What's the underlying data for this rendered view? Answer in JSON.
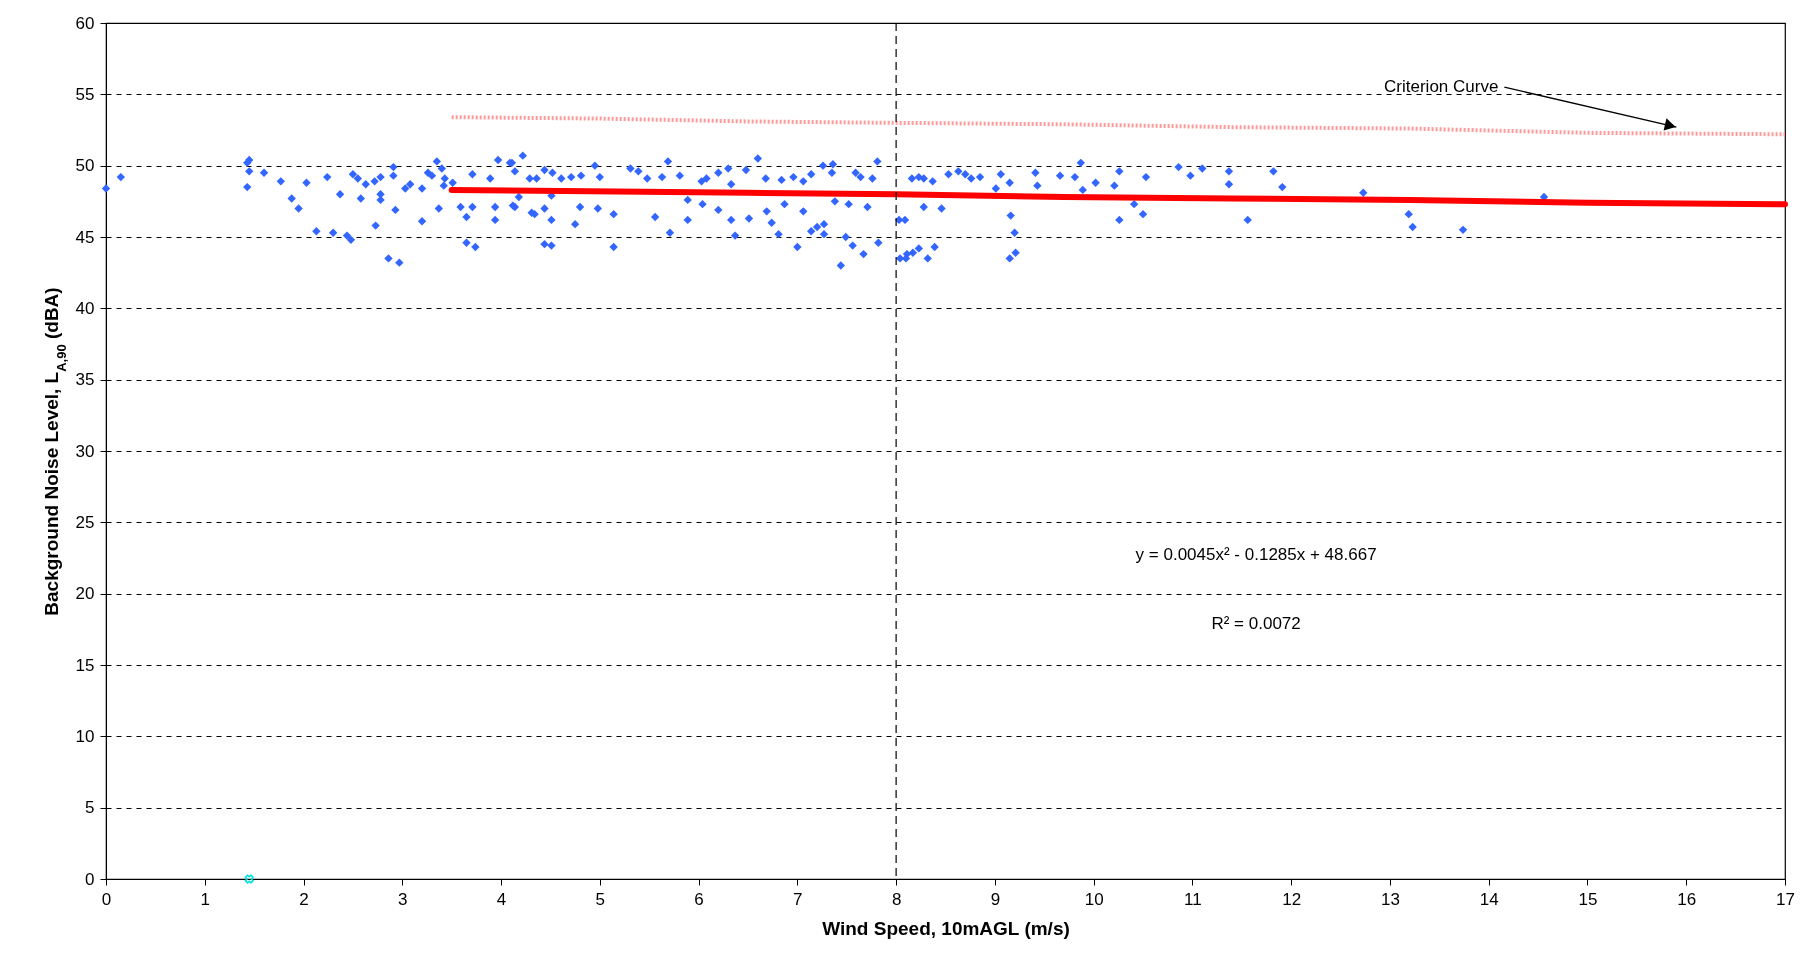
{
  "chart_data": {
    "type": "scatter",
    "xlabel": "Wind Speed, 10mAGL (m/s)",
    "ylabel": "Background Noise Level, L$_{A,90}$ (dBA)",
    "xlim": [
      0,
      17
    ],
    "xticks": [
      0,
      1,
      2,
      3,
      4,
      5,
      6,
      7,
      8,
      9,
      10,
      11,
      12,
      13,
      14,
      15,
      16,
      17
    ],
    "ylim": [
      0,
      60
    ],
    "yticks": [
      0,
      5,
      10,
      15,
      20,
      25,
      30,
      35,
      40,
      45,
      50,
      55,
      60
    ],
    "grid": "y",
    "marker": "diamond",
    "series": [
      {
        "color": "#3366ff",
        "x": [
          0,
          0.15,
          1.43,
          1.45,
          1.45,
          1.43,
          1.6,
          1.77,
          1.88,
          1.95,
          2.03,
          2.13,
          2.24,
          2.3,
          2.37,
          2.44,
          2.48,
          2.5,
          2.55,
          2.58,
          2.63,
          2.73,
          2.72,
          2.78,
          2.78,
          2.78,
          2.86,
          2.91,
          2.91,
          2.93,
          2.97,
          3.03,
          3.08,
          3.2,
          3.2,
          3.26,
          3.3,
          3.35,
          3.37,
          3.4,
          3.43,
          3.42,
          3.51,
          3.59,
          3.65,
          3.65,
          3.71,
          3.71,
          3.74,
          3.89,
          3.94,
          3.94,
          3.97,
          4.09,
          4.12,
          4.11,
          4.14,
          4.22,
          4.18,
          4.14,
          4.29,
          4.36,
          4.31,
          4.34,
          4.44,
          4.44,
          4.51,
          4.44,
          4.51,
          4.52,
          4.51,
          4.61,
          4.71,
          4.81,
          4.75,
          4.8,
          4.95,
          5.0,
          4.98,
          5.14,
          5.14,
          5.31,
          5.39,
          5.48,
          5.63,
          5.56,
          5.69,
          5.71,
          5.81,
          5.89,
          5.89,
          6.03,
          6.08,
          6.04,
          6.2,
          6.3,
          6.2,
          6.33,
          6.33,
          6.37,
          6.48,
          6.51,
          6.6,
          6.68,
          6.69,
          6.74,
          6.81,
          6.84,
          6.87,
          6.96,
          7.06,
          7.14,
          7.0,
          7.06,
          7.14,
          7.2,
          7.27,
          7.26,
          7.36,
          7.35,
          7.27,
          7.38,
          7.44,
          7.49,
          7.56,
          7.52,
          7.59,
          7.64,
          7.67,
          7.71,
          7.76,
          7.81,
          7.82,
          8.03,
          8.04,
          8.11,
          8.16,
          8.09,
          8.1,
          8.17,
          8.23,
          8.23,
          8.28,
          8.28,
          8.32,
          8.37,
          8.39,
          8.46,
          8.53,
          8.63,
          8.7,
          8.76,
          8.85,
          9.01,
          9.06,
          9.15,
          9.16,
          9.2,
          9.15,
          9.21,
          9.41,
          9.43,
          9.66,
          9.81,
          9.87,
          9.89,
          10.02,
          10.21,
          10.26,
          10.26,
          10.41,
          10.5,
          10.53,
          10.86,
          10.98,
          11.1,
          11.37,
          11.37,
          11.56,
          11.82,
          11.91,
          12.73,
          13.19,
          13.23,
          13.74,
          14.56
        ],
        "values": [
          48.4,
          49.2,
          50.2,
          50.4,
          49.6,
          48.5,
          49.5,
          48.9,
          47.7,
          47.0,
          48.8,
          45.4,
          49.2,
          45.3,
          48.0,
          45.1,
          44.8,
          49.4,
          49.1,
          47.7,
          48.7,
          45.8,
          48.9,
          49.2,
          48.0,
          47.6,
          43.5,
          49.9,
          49.3,
          46.9,
          43.2,
          48.4,
          48.7,
          46.1,
          48.4,
          49.5,
          49.3,
          50.3,
          47.0,
          49.8,
          49.1,
          48.6,
          48.8,
          47.1,
          46.4,
          44.6,
          49.4,
          47.1,
          44.3,
          49.1,
          47.1,
          46.2,
          50.4,
          50.2,
          47.2,
          50.2,
          49.6,
          50.7,
          47.8,
          47.1,
          49.1,
          49.1,
          46.7,
          46.6,
          49.7,
          47.0,
          46.2,
          44.5,
          44.4,
          49.5,
          47.9,
          49.1,
          49.2,
          49.3,
          45.9,
          47.1,
          50.0,
          49.2,
          47.0,
          46.6,
          44.3,
          49.8,
          49.6,
          49.1,
          49.2,
          46.4,
          50.3,
          45.3,
          49.3,
          47.6,
          46.2,
          48.9,
          49.1,
          47.3,
          49.5,
          49.8,
          46.9,
          48.7,
          46.2,
          45.1,
          49.7,
          46.3,
          50.5,
          49.1,
          46.8,
          46.0,
          45.2,
          49.0,
          47.3,
          49.2,
          48.9,
          49.4,
          44.3,
          46.8,
          45.4,
          45.7,
          45.9,
          50.0,
          50.1,
          49.5,
          45.2,
          47.5,
          43.0,
          45.0,
          44.4,
          47.3,
          49.5,
          49.2,
          43.8,
          47.1,
          49.1,
          50.3,
          44.6,
          46.2,
          43.5,
          43.8,
          49.1,
          46.2,
          43.5,
          43.9,
          44.2,
          49.2,
          49.1,
          47.1,
          43.5,
          48.9,
          44.3,
          47.0,
          49.4,
          49.6,
          49.4,
          49.1,
          49.2,
          48.4,
          49.4,
          48.8,
          46.5,
          45.3,
          43.5,
          43.9,
          49.5,
          48.6,
          49.3,
          49.2,
          50.2,
          48.3,
          48.8,
          48.6,
          49.6,
          46.2,
          47.3,
          46.6,
          49.2,
          49.9,
          49.3,
          49.8,
          49.6,
          48.7,
          46.2,
          49.6,
          48.5,
          48.1,
          46.6,
          45.7,
          45.5,
          47.8
        ]
      },
      {
        "color": "#00e0e0",
        "marker": "cross",
        "x": [
          1.45
        ],
        "values": [
          0
        ]
      },
      {
        "type": "line",
        "marker": "none",
        "color": "#ff0000",
        "x": [
          3.5,
          4.9,
          6.5,
          8,
          9.7,
          11.4,
          13.2,
          15,
          17
        ],
        "values": [
          48.3,
          48.2,
          48.1,
          48.0,
          47.8,
          47.7,
          47.6,
          47.4,
          47.3
        ]
      },
      {
        "type": "line",
        "marker": "none",
        "color": "#ff9999",
        "line_style": "dotted",
        "x": [
          3.5,
          5,
          6.5,
          8,
          9.7,
          11.4,
          13.2,
          15,
          17
        ],
        "values": [
          53.4,
          53.3,
          53.1,
          53.0,
          52.9,
          52.7,
          52.6,
          52.3,
          52.2
        ]
      }
    ],
    "ref_lines": [
      {
        "axis": "x",
        "value": 8,
        "line_style": "dashed"
      }
    ],
    "annotations": [
      {
        "text": "Criterion Curve",
        "x": 15.9,
        "y": 52.7
      },
      "y = 0.0045x² - 0.1285x + 48.667",
      "R² = 0.0072"
    ]
  }
}
